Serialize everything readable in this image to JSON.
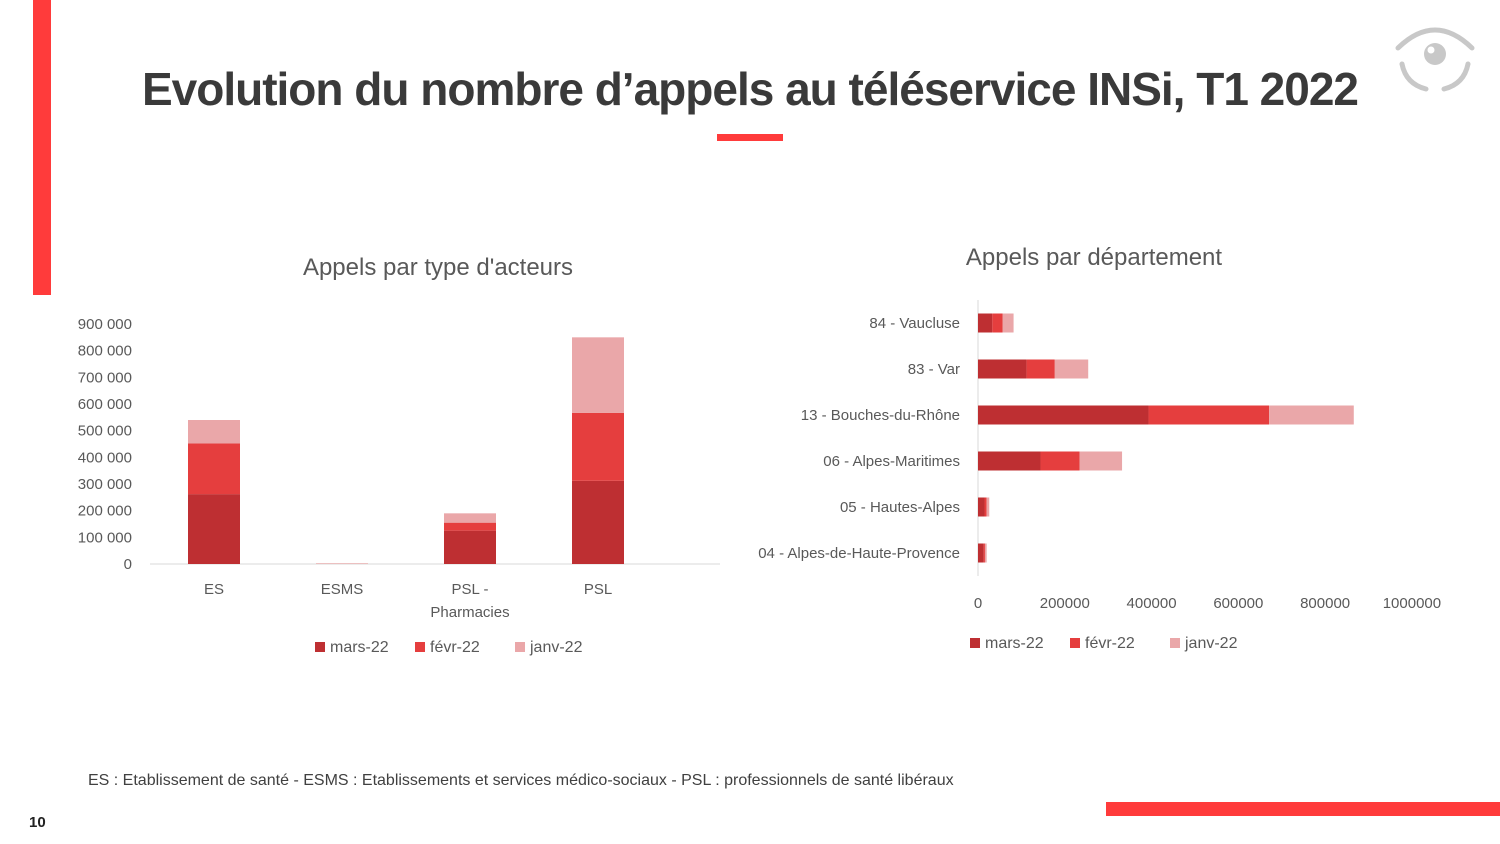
{
  "title": "Evolution du nombre d’appels au téléservice INSi, T1 2022",
  "footnote": "ES : Etablissement de santé - ESMS : Etablissements et services médico-sociaux - PSL : professionnels de santé libéraux",
  "page_number": "10",
  "colors": {
    "accent": "#ff3b3b",
    "mars": "#be2f32",
    "fevr": "#e53e3e",
    "janv": "#eaa7a9"
  },
  "chart_data": [
    {
      "type": "bar",
      "stacked": true,
      "orientation": "vertical",
      "title": "Appels par type d'acteurs",
      "categories": [
        [
          "ES"
        ],
        [
          "ESMS"
        ],
        [
          "PSL -",
          "Pharmacies"
        ],
        [
          "PSL"
        ]
      ],
      "category_names": [
        "ES",
        "ESMS",
        "PSL - Pharmacies",
        "PSL"
      ],
      "series": [
        {
          "name": "mars-22",
          "values": [
            262000,
            800,
            125000,
            312000
          ]
        },
        {
          "name": "févr-22",
          "values": [
            190000,
            600,
            30000,
            255000
          ]
        },
        {
          "name": "janv-22",
          "values": [
            88000,
            400,
            35000,
            283000
          ]
        }
      ],
      "ylim": [
        0,
        900000
      ],
      "yticks": [
        0,
        100000,
        200000,
        300000,
        400000,
        500000,
        600000,
        700000,
        800000,
        900000
      ],
      "legend": "bottom"
    },
    {
      "type": "bar",
      "stacked": true,
      "orientation": "horizontal",
      "title": "Appels par département",
      "categories": [
        "84 - Vaucluse",
        "83 - Var",
        "13 - Bouches-du-Rhône",
        "06 - Alpes-Maritimes",
        "05 - Hautes-Alpes",
        "04 - Alpes-de-Haute-Provence"
      ],
      "series": [
        {
          "name": "mars-22",
          "values": [
            33000,
            112000,
            393000,
            144000,
            15000,
            13000
          ]
        },
        {
          "name": "févr-22",
          "values": [
            24000,
            65000,
            278000,
            90000,
            5000,
            3000
          ]
        },
        {
          "name": "janv-22",
          "values": [
            25000,
            77000,
            195000,
            98000,
            6000,
            4000
          ]
        }
      ],
      "xlim": [
        0,
        1000000
      ],
      "xticks": [
        0,
        200000,
        400000,
        600000,
        800000,
        1000000
      ],
      "legend": "bottom"
    }
  ]
}
